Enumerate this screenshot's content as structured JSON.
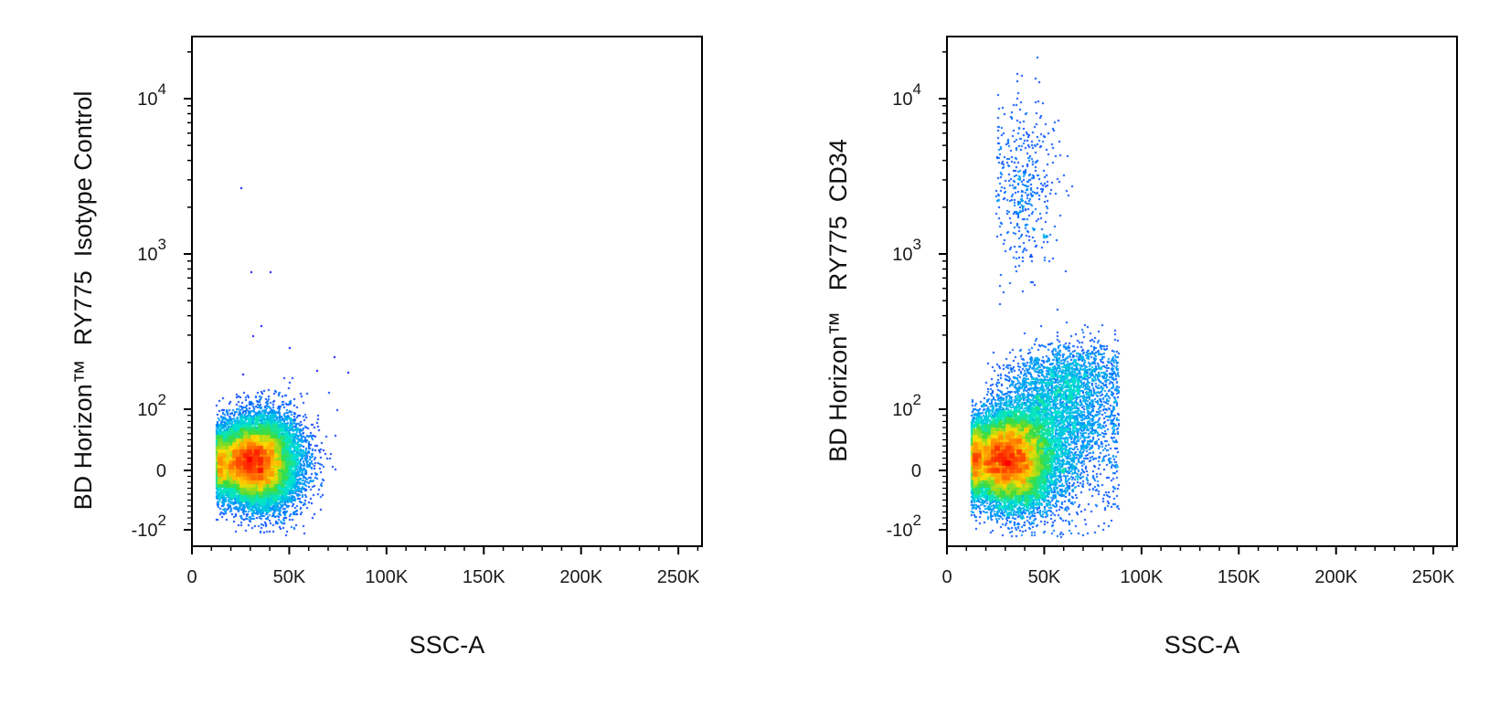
{
  "chart_data": [
    {
      "type": "scatter",
      "plot_kind": "flow-cytometry density dot plot",
      "xlabel": "SSC-A",
      "ylabel": "BD Horizon™  RY775  Isotype Control",
      "x_scale": "linear",
      "y_scale": "biexponential",
      "xlim": [
        0,
        262144
      ],
      "ylim": [
        -300,
        20000
      ],
      "x_ticks": [
        {
          "value": 0,
          "label": "0"
        },
        {
          "value": 50000,
          "label": "50K"
        },
        {
          "value": 100000,
          "label": "100K"
        },
        {
          "value": 150000,
          "label": "150K"
        },
        {
          "value": 200000,
          "label": "200K"
        },
        {
          "value": 250000,
          "label": "250K"
        }
      ],
      "y_ticks": [
        {
          "value": -100,
          "base": "-10",
          "exp": "2"
        },
        {
          "value": 0,
          "base": "0",
          "exp": ""
        },
        {
          "value": 100,
          "base": "10",
          "exp": "2"
        },
        {
          "value": 1000,
          "base": "10",
          "exp": "3"
        },
        {
          "value": 10000,
          "base": "10",
          "exp": "4"
        }
      ],
      "colormap": [
        "#0000ff",
        "#0090ff",
        "#00e5d0",
        "#3cdc3c",
        "#ffdc00",
        "#ff6600",
        "#ff0000"
      ],
      "populations": [
        {
          "x_mean": 31000,
          "x_sd": 11000,
          "y_mean": 15,
          "y_sd": 35,
          "share": 1.0,
          "x_max": 88000,
          "x_min": 12000
        }
      ],
      "outliers": [
        {
          "x": 25000,
          "y": 2700
        },
        {
          "x": 30000,
          "y": 770
        },
        {
          "x": 40000,
          "y": 770
        },
        {
          "x": 31000,
          "y": 300
        },
        {
          "x": 35000,
          "y": 350
        },
        {
          "x": 50000,
          "y": 250
        },
        {
          "x": 73000,
          "y": 220
        },
        {
          "x": 64000,
          "y": 180
        },
        {
          "x": 80000,
          "y": 175
        },
        {
          "x": 26000,
          "y": 170
        }
      ]
    },
    {
      "type": "scatter",
      "plot_kind": "flow-cytometry density dot plot",
      "xlabel": "SSC-A",
      "ylabel": "BD Horizon™   RY775  CD34",
      "x_scale": "linear",
      "y_scale": "biexponential",
      "xlim": [
        0,
        262144
      ],
      "ylim": [
        -300,
        20000
      ],
      "x_ticks": [
        {
          "value": 0,
          "label": "0"
        },
        {
          "value": 50000,
          "label": "50K"
        },
        {
          "value": 100000,
          "label": "100K"
        },
        {
          "value": 150000,
          "label": "150K"
        },
        {
          "value": 200000,
          "label": "200K"
        },
        {
          "value": 250000,
          "label": "250K"
        }
      ],
      "y_ticks": [
        {
          "value": -100,
          "base": "-10",
          "exp": "2"
        },
        {
          "value": 0,
          "base": "0",
          "exp": ""
        },
        {
          "value": 100,
          "base": "10",
          "exp": "2"
        },
        {
          "value": 1000,
          "base": "10",
          "exp": "3"
        },
        {
          "value": 10000,
          "base": "10",
          "exp": "4"
        }
      ],
      "colormap": [
        "#0000ff",
        "#0090ff",
        "#00e5d0",
        "#3cdc3c",
        "#ffdc00",
        "#ff6600",
        "#ff0000"
      ],
      "populations": [
        {
          "x_mean": 31000,
          "x_sd": 12000,
          "y_mean": 20,
          "y_sd": 40,
          "share": 0.82,
          "x_max": 88000,
          "x_min": 12000
        },
        {
          "x_mean": 60000,
          "x_sd": 15000,
          "y_mean": 110,
          "y_sd": 60,
          "share": 0.16,
          "x_max": 88000,
          "x_min": 20000
        },
        {
          "x_mean": 40000,
          "x_sd": 9000,
          "y_log_mean": 3.45,
          "y_log_sd": 0.28,
          "share": 0.02,
          "x_max": 85000,
          "x_min": 25000
        }
      ],
      "outliers": []
    }
  ]
}
